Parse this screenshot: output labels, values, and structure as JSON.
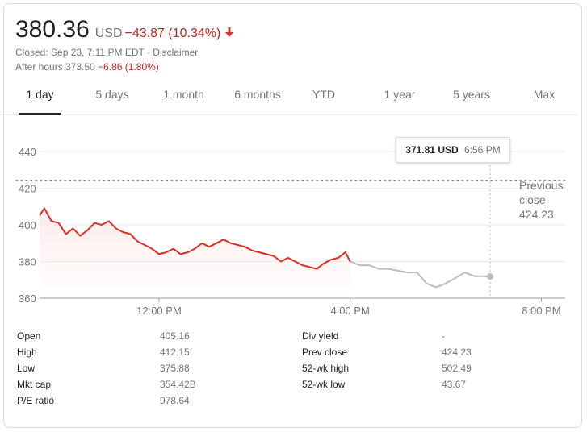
{
  "quote": {
    "price": "380.36",
    "currency": "USD",
    "change": "−43.87 (10.34%)",
    "closed_text": "Closed: Sep 23, 7:11 PM EDT · Disclaimer",
    "after_hours_label": "After hours 373.50",
    "after_hours_change": "−6.86 (1.80%)"
  },
  "tabs": [
    "1 day",
    "5 days",
    "1 month",
    "6 months",
    "YTD",
    "1 year",
    "5 years",
    "Max"
  ],
  "active_tab": 0,
  "tooltip": {
    "price": "371.81 USD",
    "time": "6:56 PM"
  },
  "prev_close": {
    "line1": "Previous",
    "line2": "close",
    "value": "424.23"
  },
  "colors": {
    "down": "#d93025",
    "afterhours": "#bdbdbd",
    "axis": "#70757a"
  },
  "chart_data": {
    "type": "line",
    "y_ticks": [
      "440",
      "420",
      "400",
      "380",
      "360"
    ],
    "x_ticks": [
      "12:00 PM",
      "4:00 PM",
      "8:00 PM"
    ],
    "ylim": [
      360,
      440
    ],
    "x_unit": "hours since midnight",
    "xlim": [
      9.5,
      20.5
    ],
    "prev_close": 424.23,
    "series": [
      {
        "session": "regular",
        "x": [
          9.5,
          9.6,
          9.75,
          9.9,
          10.05,
          10.2,
          10.35,
          10.5,
          10.65,
          10.8,
          10.95,
          11.1,
          11.25,
          11.4,
          11.55,
          11.7,
          11.85,
          12.0,
          12.15,
          12.3,
          12.45,
          12.6,
          12.75,
          12.9,
          13.05,
          13.2,
          13.35,
          13.5,
          13.65,
          13.8,
          13.95,
          14.1,
          14.25,
          14.4,
          14.55,
          14.7,
          14.85,
          15.0,
          15.15,
          15.3,
          15.45,
          15.6,
          15.75,
          15.9,
          16.0
        ],
        "values": [
          405,
          409,
          402,
          401,
          395,
          398,
          394,
          397,
          401,
          400,
          402,
          398,
          396,
          395,
          391,
          389,
          387,
          384,
          385,
          387,
          384,
          385,
          387,
          390,
          388,
          390,
          392,
          390,
          389,
          388,
          386,
          385,
          384,
          383,
          380,
          382,
          380,
          378,
          377,
          376,
          379,
          381,
          382,
          385,
          380
        ]
      },
      {
        "session": "after-hours",
        "x": [
          16.0,
          16.2,
          16.4,
          16.6,
          16.8,
          17.0,
          17.2,
          17.4,
          17.6,
          17.8,
          18.0,
          18.2,
          18.4,
          18.6,
          18.8,
          18.93
        ],
        "values": [
          380,
          378,
          378,
          376,
          376,
          375,
          374,
          374,
          368,
          366,
          368,
          371,
          374,
          372,
          372,
          371.81
        ]
      }
    ]
  },
  "stats_left": [
    {
      "label": "Open",
      "value": "405.16"
    },
    {
      "label": "High",
      "value": "412.15"
    },
    {
      "label": "Low",
      "value": "375.88"
    },
    {
      "label": "Mkt cap",
      "value": "354.42B"
    },
    {
      "label": "P/E ratio",
      "value": "978.64"
    }
  ],
  "stats_right": [
    {
      "label": "Div yield",
      "value": "-"
    },
    {
      "label": "Prev close",
      "value": "424.23"
    },
    {
      "label": "52-wk high",
      "value": "502.49"
    },
    {
      "label": "52-wk low",
      "value": "43.67"
    }
  ]
}
